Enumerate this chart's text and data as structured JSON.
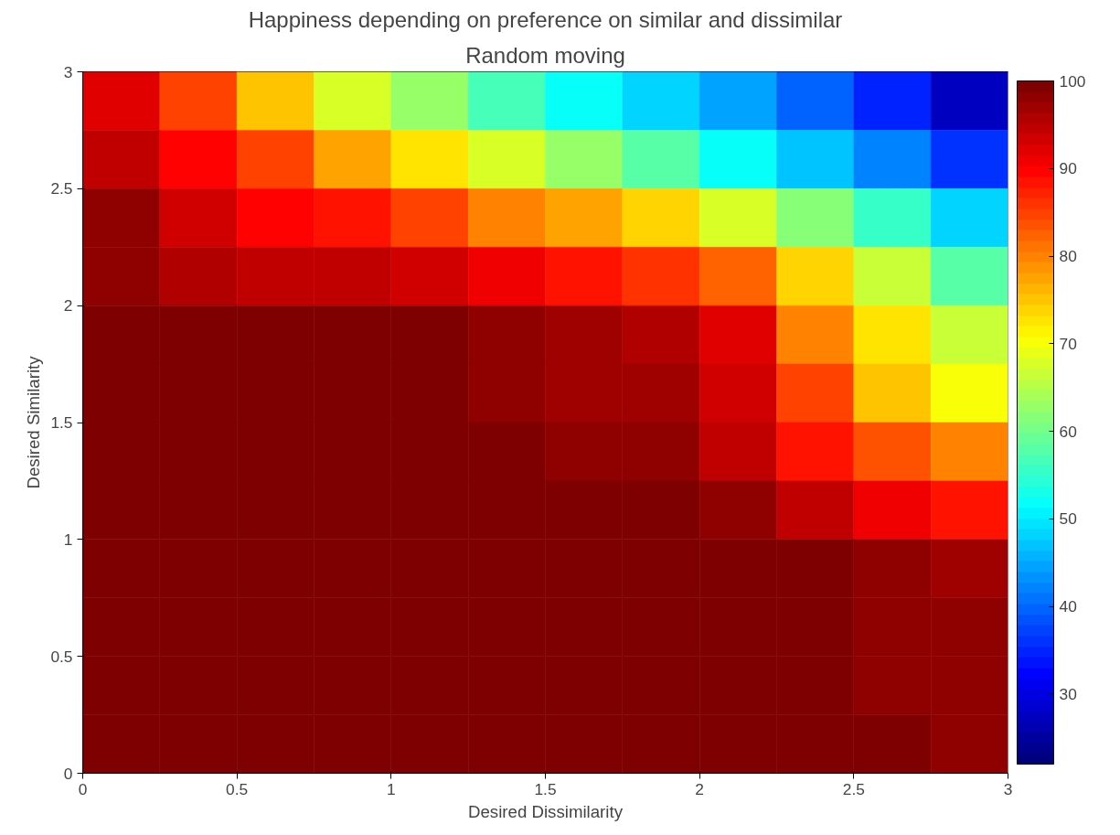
{
  "chart_data": {
    "type": "heatmap",
    "title": "Happiness depending on preference on similar and dissimilar",
    "subtitle": "Random moving",
    "xlabel": "Desired Dissimilarity",
    "ylabel": "Desired Similarity",
    "x": [
      0.125,
      0.375,
      0.625,
      0.875,
      1.125,
      1.375,
      1.625,
      1.875,
      2.125,
      2.375,
      2.625,
      2.875
    ],
    "y": [
      2.875,
      2.625,
      2.375,
      2.125,
      1.875,
      1.625,
      1.375,
      1.125,
      0.875,
      0.625,
      0.375,
      0.125
    ],
    "cells": [
      [
        92,
        85,
        75,
        68,
        63,
        57,
        52,
        48,
        45,
        40,
        35,
        27
      ],
      [
        95,
        90,
        85,
        78,
        73,
        68,
        63,
        58,
        52,
        47,
        42,
        36
      ],
      [
        98,
        93,
        90,
        88,
        85,
        80,
        77,
        74,
        68,
        62,
        55,
        48
      ],
      [
        98,
        96,
        95,
        94,
        93,
        91,
        88,
        86,
        82,
        74,
        66,
        58
      ],
      [
        100,
        100,
        100,
        100,
        99,
        98,
        97,
        96,
        92,
        80,
        72,
        66
      ],
      [
        100,
        100,
        100,
        100,
        99,
        98,
        97,
        97,
        93,
        85,
        75,
        70
      ],
      [
        100,
        100,
        100,
        100,
        99,
        99,
        98,
        98,
        95,
        88,
        84,
        80
      ],
      [
        100,
        100,
        100,
        100,
        100,
        99,
        99,
        99,
        98,
        94,
        91,
        89
      ],
      [
        100,
        100,
        100,
        100,
        100,
        100,
        100,
        100,
        100,
        100,
        98,
        97
      ],
      [
        100,
        100,
        100,
        100,
        100,
        100,
        100,
        100,
        100,
        100,
        98,
        98
      ],
      [
        100,
        100,
        100,
        100,
        100,
        100,
        100,
        100,
        100,
        100,
        98,
        98
      ],
      [
        100,
        100,
        100,
        100,
        100,
        100,
        100,
        100,
        100,
        100,
        99,
        98
      ]
    ],
    "xlim": [
      0,
      3
    ],
    "ylim": [
      0,
      3
    ],
    "xticks": [
      0,
      0.5,
      1,
      1.5,
      2,
      2.5,
      3
    ],
    "yticks": [
      0,
      0.5,
      1,
      1.5,
      2,
      2.5,
      3
    ],
    "clim": [
      22,
      100
    ],
    "cticks": [
      30,
      40,
      50,
      60,
      70,
      80,
      90,
      100
    ],
    "grid": false
  }
}
